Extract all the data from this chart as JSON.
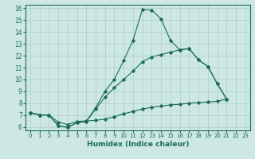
{
  "xlabel": "Humidex (Indice chaleur)",
  "xlim": [
    -0.5,
    23.5
  ],
  "ylim": [
    5.7,
    16.3
  ],
  "xticks": [
    0,
    1,
    2,
    3,
    4,
    5,
    6,
    7,
    8,
    9,
    10,
    11,
    12,
    13,
    14,
    15,
    16,
    17,
    18,
    19,
    20,
    21,
    22,
    23
  ],
  "yticks": [
    6,
    7,
    8,
    9,
    10,
    11,
    12,
    13,
    14,
    15,
    16
  ],
  "bg_color": "#cde8e2",
  "line_color": "#1a6b5a",
  "grid_color": "#a8cfc6",
  "line1_y": [
    7.2,
    7.0,
    7.0,
    6.1,
    5.95,
    6.35,
    6.45,
    7.6,
    9.0,
    10.0,
    11.6,
    13.3,
    15.9,
    15.85,
    15.1,
    13.3,
    12.5,
    12.6,
    11.65,
    11.1,
    9.65,
    8.35,
    null,
    null
  ],
  "line2_y": [
    7.2,
    7.0,
    7.0,
    6.1,
    5.95,
    6.35,
    6.45,
    7.5,
    8.5,
    9.3,
    10.0,
    10.7,
    11.5,
    11.9,
    12.1,
    12.3,
    12.5,
    12.6,
    11.65,
    11.1,
    9.65,
    8.35,
    null,
    null
  ],
  "line3_y": [
    7.2,
    7.0,
    7.0,
    6.4,
    6.2,
    6.45,
    6.5,
    6.55,
    6.65,
    6.85,
    7.1,
    7.3,
    7.5,
    7.65,
    7.75,
    7.85,
    7.9,
    8.0,
    8.05,
    8.1,
    8.15,
    8.35,
    null,
    null
  ]
}
